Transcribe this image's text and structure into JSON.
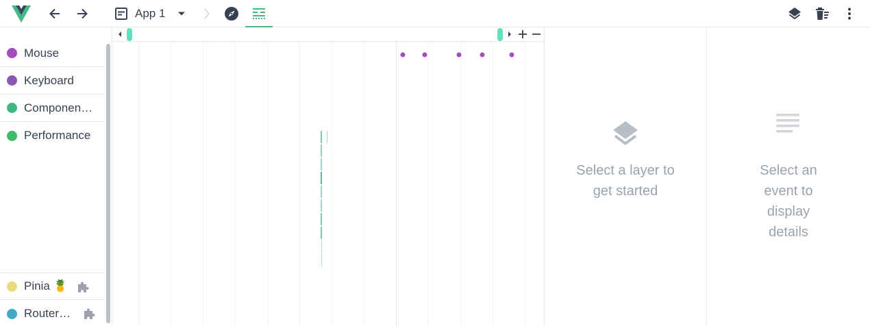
{
  "app_selector": {
    "label": "App 1"
  },
  "layers": [
    {
      "name": "Mouse",
      "color": "#a44cc0"
    },
    {
      "name": "Keyboard",
      "color": "#8e57b4"
    },
    {
      "name": "Component events",
      "color": "#41b883"
    },
    {
      "name": "Performance",
      "color": "#41b86a"
    },
    {
      "name": "Pinia 🍍",
      "color": "#e8dc7f"
    },
    {
      "name": "Router Navigations",
      "color": "#40a8c4"
    }
  ],
  "timeline": {
    "mouse_event_color": "#a44cc0",
    "performance_color": "#41b883",
    "handle_color": "#63dfc0"
  },
  "layer_panel": {
    "empty_message": "Select a layer to get started"
  },
  "event_panel": {
    "empty_message": "Select an event to display details"
  },
  "icons": {
    "logo": "vue-logo",
    "back": "arrow-left-icon",
    "forward": "arrow-right-icon",
    "app": "app-window-icon",
    "dropdown": "caret-down-icon",
    "inspector": "compass-icon",
    "timeline": "timeline-icon",
    "layers": "layers-icon",
    "clear": "clear-all-icon",
    "more": "more-vertical-icon",
    "plugin": "puzzle-icon"
  }
}
